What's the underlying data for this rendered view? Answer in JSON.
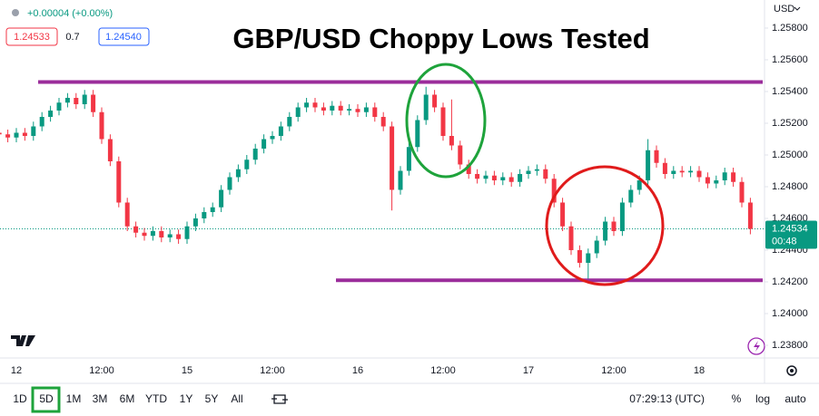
{
  "chart_data": {
    "type": "candlestick",
    "title": "GBP/USD Choppy Lows Tested",
    "currency": "USD",
    "header": {
      "change": "+0.00004 (+0.00%)",
      "bid": "1.24533",
      "spread": "0.7",
      "ask": "1.24540"
    },
    "categories": [
      null,
      null,
      "12",
      null,
      null,
      null,
      null,
      null,
      null,
      null,
      null,
      null,
      "12:00",
      null,
      null,
      null,
      null,
      null,
      null,
      null,
      null,
      null,
      "15",
      null,
      null,
      null,
      null,
      null,
      null,
      null,
      null,
      null,
      "12:00",
      null,
      null,
      null,
      null,
      null,
      null,
      null,
      null,
      null,
      "16",
      null,
      null,
      null,
      null,
      null,
      null,
      null,
      null,
      null,
      "12:00",
      null,
      null,
      null,
      null,
      null,
      null,
      null,
      null,
      null,
      "17",
      null,
      null,
      null,
      null,
      null,
      null,
      null,
      null,
      null,
      "12:00",
      null,
      null,
      null,
      null,
      null,
      null,
      null,
      null,
      null,
      "18",
      null,
      null,
      null,
      null,
      null,
      null
    ],
    "open": [
      1.2514,
      1.2513,
      1.2511,
      1.2514,
      1.2512,
      1.2518,
      1.2524,
      1.2528,
      1.2533,
      1.2536,
      1.2532,
      1.2538,
      1.2527,
      1.251,
      1.2496,
      1.247,
      1.2455,
      1.2451,
      1.2449,
      1.2452,
      1.2448,
      1.245,
      1.2447,
      1.2455,
      1.246,
      1.2464,
      1.2467,
      1.2478,
      1.2486,
      1.2491,
      1.2497,
      1.2504,
      1.251,
      1.2512,
      1.2518,
      1.2524,
      1.253,
      1.2533,
      1.253,
      1.2528,
      1.2531,
      1.2528,
      1.2529,
      1.2527,
      1.253,
      1.2524,
      1.2518,
      1.2478,
      1.249,
      1.2505,
      1.2522,
      1.2538,
      1.253,
      1.2512,
      1.2506,
      1.2494,
      1.2488,
      1.2485,
      1.2487,
      1.2484,
      1.2486,
      1.2483,
      1.2488,
      1.249,
      1.2491,
      1.2485,
      1.247,
      1.2455,
      1.244,
      1.2432,
      1.2438,
      1.2446,
      1.2458,
      1.2452,
      1.247,
      1.2478,
      1.2484,
      1.2503,
      1.2495,
      1.2488,
      1.249,
      1.2489,
      1.249,
      1.2486,
      1.2482,
      1.2484,
      1.2489,
      1.2483,
      1.247
    ],
    "high": [
      1.2517,
      1.2516,
      1.2517,
      1.2517,
      1.2521,
      1.2527,
      1.2531,
      1.2536,
      1.2539,
      1.2539,
      1.2541,
      1.2541,
      1.253,
      1.2513,
      1.2499,
      1.2473,
      1.2458,
      1.2454,
      1.2455,
      1.2455,
      1.2453,
      1.2453,
      1.2458,
      1.2463,
      1.2467,
      1.247,
      1.2481,
      1.2489,
      1.2494,
      1.25,
      1.2507,
      1.2513,
      1.2515,
      1.2521,
      1.2527,
      1.2533,
      1.2536,
      1.2536,
      1.2533,
      1.2534,
      1.2534,
      1.2532,
      1.2532,
      1.2533,
      1.2533,
      1.2527,
      1.2521,
      1.2493,
      1.2508,
      1.2525,
      1.2543,
      1.2541,
      1.2533,
      1.2535,
      1.2509,
      1.2497,
      1.2491,
      1.249,
      1.249,
      1.2489,
      1.2489,
      1.2491,
      1.2493,
      1.2494,
      1.2494,
      1.2488,
      1.2473,
      1.2458,
      1.2443,
      1.2441,
      1.2449,
      1.2461,
      1.2461,
      1.2473,
      1.2481,
      1.2487,
      1.251,
      1.2506,
      1.2498,
      1.2493,
      1.2493,
      1.2493,
      1.2493,
      1.2489,
      1.2487,
      1.2492,
      1.2492,
      1.2486,
      1.2473
    ],
    "low": [
      1.251,
      1.2508,
      1.2508,
      1.2509,
      1.2509,
      1.2515,
      1.2521,
      1.2525,
      1.253,
      1.2529,
      1.2529,
      1.2524,
      1.2507,
      1.2493,
      1.2467,
      1.2452,
      1.2448,
      1.2446,
      1.2446,
      1.2445,
      1.2445,
      1.2444,
      1.2444,
      1.2452,
      1.2457,
      1.2461,
      1.2464,
      1.2475,
      1.2483,
      1.2488,
      1.2494,
      1.2501,
      1.2507,
      1.2509,
      1.2515,
      1.2521,
      1.2527,
      1.2527,
      1.2525,
      1.2525,
      1.2525,
      1.2525,
      1.2524,
      1.2524,
      1.2521,
      1.2515,
      1.2465,
      1.2475,
      1.2487,
      1.2502,
      1.2519,
      1.2527,
      1.2509,
      1.2503,
      1.2491,
      1.2485,
      1.2482,
      1.2482,
      1.2481,
      1.2481,
      1.248,
      1.248,
      1.2485,
      1.2487,
      1.2482,
      1.2467,
      1.2452,
      1.2437,
      1.2429,
      1.2422,
      1.2435,
      1.2443,
      1.2449,
      1.2449,
      1.2467,
      1.2475,
      1.2481,
      1.2492,
      1.2485,
      1.2485,
      1.2486,
      1.2486,
      1.2483,
      1.2479,
      1.2479,
      1.2481,
      1.248,
      1.2467,
      1.245
    ],
    "close": [
      1.2513,
      1.2511,
      1.2514,
      1.2512,
      1.2518,
      1.2524,
      1.2528,
      1.2533,
      1.2536,
      1.2532,
      1.2538,
      1.2527,
      1.251,
      1.2496,
      1.247,
      1.2455,
      1.2451,
      1.2449,
      1.2452,
      1.2448,
      1.245,
      1.2447,
      1.2455,
      1.246,
      1.2464,
      1.2467,
      1.2478,
      1.2486,
      1.2491,
      1.2497,
      1.2504,
      1.251,
      1.2512,
      1.2518,
      1.2524,
      1.253,
      1.2533,
      1.253,
      1.2528,
      1.2531,
      1.2528,
      1.2529,
      1.2527,
      1.253,
      1.2524,
      1.2518,
      1.2478,
      1.249,
      1.2505,
      1.2522,
      1.2538,
      1.253,
      1.2512,
      1.2506,
      1.2494,
      1.2488,
      1.2485,
      1.2487,
      1.2484,
      1.2486,
      1.2483,
      1.2488,
      1.249,
      1.2491,
      1.2485,
      1.247,
      1.2455,
      1.244,
      1.2432,
      1.2438,
      1.2446,
      1.2458,
      1.2452,
      1.247,
      1.2478,
      1.2484,
      1.2503,
      1.2495,
      1.2488,
      1.249,
      1.2489,
      1.249,
      1.2486,
      1.2482,
      1.2484,
      1.2489,
      1.2483,
      1.247,
      1.24534
    ],
    "up_color": "#089981",
    "down_color": "#f23645",
    "countdown": "00:48",
    "levels": [
      {
        "value": 1.2546,
        "color": "#9b2d9b"
      },
      {
        "value": 1.2421,
        "color": "#9b2d9b"
      }
    ],
    "ylim": [
      1.2372,
      1.25977
    ],
    "yticks": [
      {
        "value": 1.258,
        "label": "1.25800"
      },
      {
        "value": 1.256,
        "label": "1.25600"
      },
      {
        "value": 1.254,
        "label": "1.25400"
      },
      {
        "value": 1.252,
        "label": "1.25200"
      },
      {
        "value": 1.25,
        "label": "1.25000"
      },
      {
        "value": 1.248,
        "label": "1.24800"
      },
      {
        "value": 1.246,
        "label": "1.24600"
      },
      {
        "value": 1.244,
        "label": "1.24400"
      },
      {
        "value": 1.242,
        "label": "1.24200"
      },
      {
        "value": 1.24,
        "label": "1.24000"
      },
      {
        "value": 1.238,
        "label": "1.23800"
      }
    ],
    "grid": false
  },
  "toolbar": {
    "ranges": [
      "1D",
      "5D",
      "1M",
      "3M",
      "6M",
      "YTD",
      "1Y",
      "5Y",
      "All"
    ],
    "clock": "07:29:13 (UTC)",
    "options": [
      "%",
      "log",
      "auto"
    ]
  }
}
